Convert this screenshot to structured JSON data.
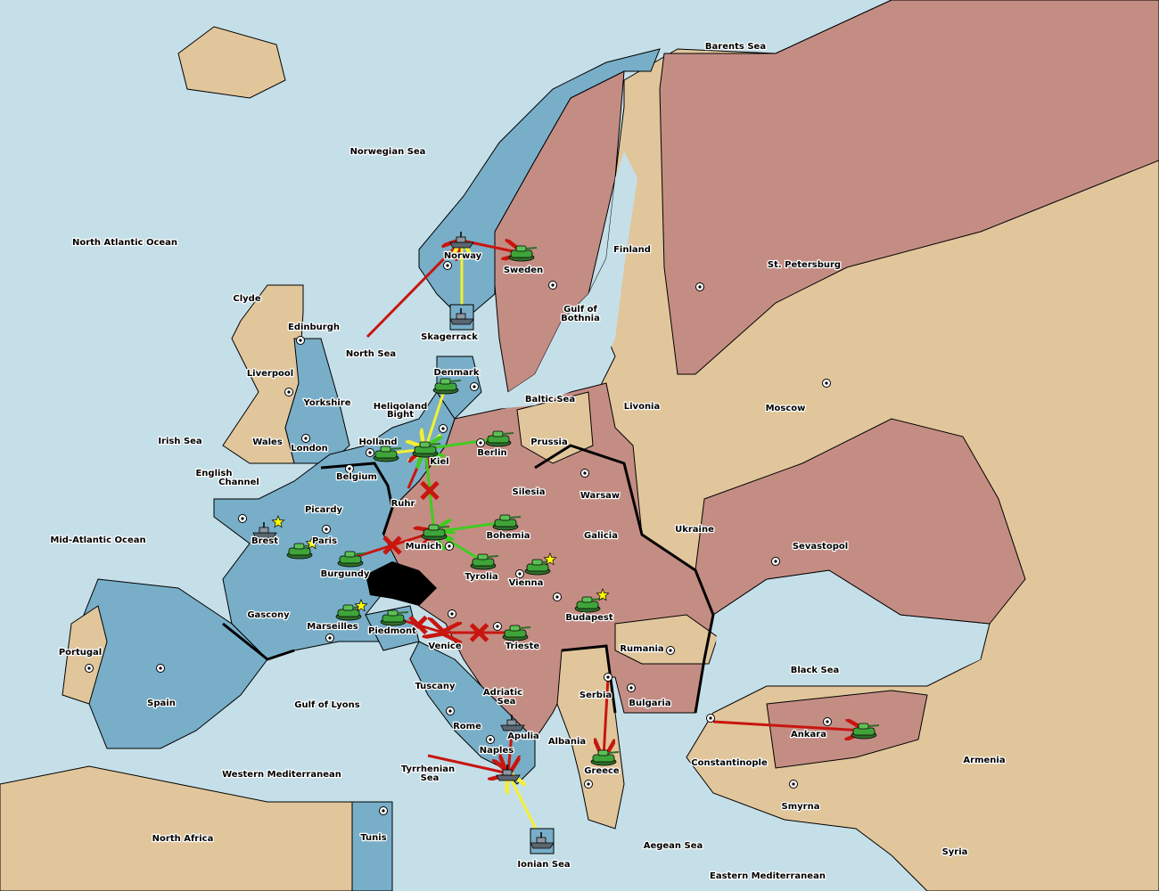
{
  "colors": {
    "sea": "#c5dfe9",
    "neutral": "#e1c69c",
    "blue_power": "#78aec8",
    "red_power": "#c48d84",
    "unit_green": "#3fa53a",
    "order_red": "#c8160f",
    "order_yellow": "#f5f030",
    "order_green": "#40cc20"
  },
  "map": {
    "labels": [
      "Barents Sea",
      "Norwegian Sea",
      "North Atlantic Ocean",
      "Finland",
      "St. Petersburg",
      "Norway",
      "Sweden",
      "Clyde",
      "Edinburgh",
      "Gulf of",
      "Bothnia",
      "Skagerrack",
      "North Sea",
      "Liverpool",
      "Denmark",
      "Baltic Sea",
      "Yorkshire",
      "Heligoland",
      "Bight",
      "Livonia",
      "Moscow",
      "Irish Sea",
      "Wales",
      "Holland",
      "Prussia",
      "London",
      "Berlin",
      "Kiel",
      "English",
      "Channel",
      "Belgium",
      "Silesia",
      "Warsaw",
      "Ruhr",
      "Picardy",
      "Ukraine",
      "Brest",
      "Paris",
      "Mid-Atlantic Ocean",
      "Bohemia",
      "Galicia",
      "Munich",
      "Sevastopol",
      "Burgundy",
      "Tyrolia",
      "Vienna",
      "Gascony",
      "Budapest",
      "Marseilles",
      "Piedmont",
      "Venice",
      "Trieste",
      "Rumania",
      "Portugal",
      "Black Sea",
      "Tuscany",
      "Serbia",
      "Adriatic",
      "Sea",
      "Spain",
      "Gulf of Lyons",
      "Bulgaria",
      "Rome",
      "Apulia",
      "Albania",
      "Ankara",
      "Constantinople",
      "Armenia",
      "Naples",
      "Tyrrhenian",
      "Sea",
      "Western Mediterranean",
      "Greece",
      "Smyrna",
      "North Africa",
      "Tunis",
      "Aegean Sea",
      "Syria",
      "Ionian Sea",
      "Eastern Mediterranean"
    ],
    "supply_centers": [
      "St. Petersburg",
      "Norway",
      "Sweden",
      "Edinburgh",
      "Liverpool",
      "Denmark",
      "Moscow",
      "London",
      "Berlin",
      "Kiel",
      "Holland",
      "Belgium",
      "Warsaw",
      "Paris",
      "Brest",
      "Munich",
      "Sevastopol",
      "Vienna",
      "Budapest",
      "Marseilles",
      "Venice",
      "Trieste",
      "Rumania",
      "Portugal",
      "Spain",
      "Serbia",
      "Bulgaria",
      "Rome",
      "Naples",
      "Ankara",
      "Constantinople",
      "Greece",
      "Smyrna",
      "Tunis"
    ],
    "units": [
      {
        "type": "army",
        "province": "Sweden"
      },
      {
        "type": "army",
        "province": "Denmark"
      },
      {
        "type": "army",
        "province": "Berlin"
      },
      {
        "type": "army",
        "province": "Holland"
      },
      {
        "type": "army",
        "province": "Kiel"
      },
      {
        "type": "army",
        "province": "Munich"
      },
      {
        "type": "army",
        "province": "Bohemia"
      },
      {
        "type": "army",
        "province": "Tyrolia"
      },
      {
        "type": "army",
        "province": "Vienna"
      },
      {
        "type": "army",
        "province": "Budapest"
      },
      {
        "type": "army",
        "province": "Paris"
      },
      {
        "type": "army",
        "province": "Burgundy"
      },
      {
        "type": "army",
        "province": "Marseilles"
      },
      {
        "type": "army",
        "province": "Piedmont"
      },
      {
        "type": "army",
        "province": "Trieste"
      },
      {
        "type": "army",
        "province": "Greece"
      },
      {
        "type": "army",
        "province": "Ankara"
      },
      {
        "type": "fleet",
        "province": "Norway"
      },
      {
        "type": "fleet",
        "province": "Skagerrack",
        "retreat": true
      },
      {
        "type": "fleet",
        "province": "Brest"
      },
      {
        "type": "fleet",
        "province": "Apulia"
      },
      {
        "type": "fleet",
        "province": "Naples"
      },
      {
        "type": "fleet",
        "province": "Ionian Sea",
        "retreat": true
      }
    ],
    "stars": [
      "Brest",
      "Paris",
      "Marseilles",
      "Vienna",
      "Budapest"
    ],
    "orders": [
      {
        "from": "North Sea",
        "to": "Norway",
        "color": "red"
      },
      {
        "from": "Norway",
        "to": "Sweden",
        "color": "red"
      },
      {
        "from": "Skagerrack",
        "to": "Norway",
        "color": "yellow"
      },
      {
        "from": "Denmark",
        "to": "Kiel",
        "color": "yellow"
      },
      {
        "from": "Holland",
        "to": "Kiel",
        "color": "yellow"
      },
      {
        "from": "Ruhr",
        "to": "Kiel",
        "color": "red"
      },
      {
        "from": "Berlin",
        "to": "Kiel",
        "color": "green"
      },
      {
        "from": "Munich",
        "to": "Kiel",
        "color": "green",
        "failed": true
      },
      {
        "from": "Bohemia",
        "to": "Munich",
        "color": "green"
      },
      {
        "from": "Tyrolia",
        "to": "Munich",
        "color": "green"
      },
      {
        "from": "Burgundy",
        "to": "Munich",
        "color": "red",
        "failed": true
      },
      {
        "from": "Piedmont",
        "to": "Venice",
        "color": "red",
        "failed": true
      },
      {
        "from": "Trieste",
        "to": "Venice",
        "color": "red",
        "failed": true
      },
      {
        "from": "Serbia",
        "to": "Greece",
        "color": "red"
      },
      {
        "from": "Constantinople",
        "to": "Ankara",
        "color": "red"
      },
      {
        "from": "Tyrrhenian",
        "to": "Naples",
        "color": "red"
      },
      {
        "from": "Apulia",
        "to": "Naples",
        "color": "red"
      },
      {
        "from": "Ionian Sea",
        "to": "Naples",
        "color": "yellow"
      }
    ]
  }
}
